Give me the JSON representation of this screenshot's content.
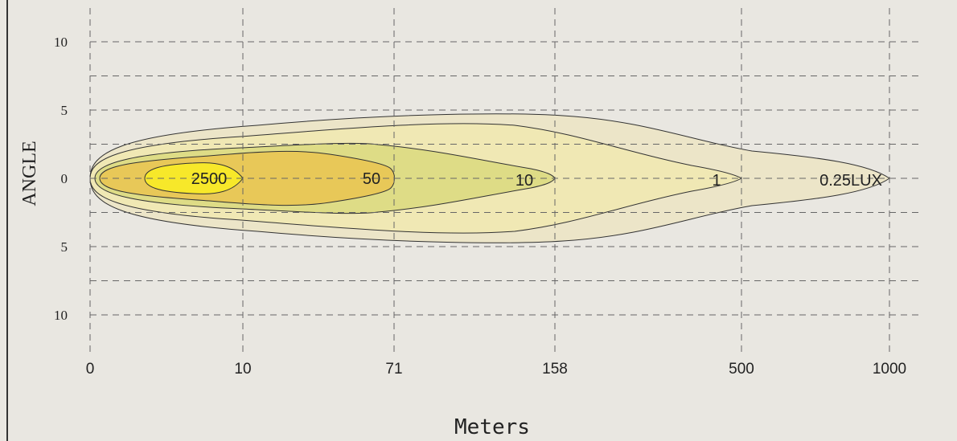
{
  "chart_data": {
    "type": "contour",
    "xlabel": "Meters",
    "ylabel": "ANGLE",
    "x_ticks": [
      "0",
      "10",
      "71",
      "158",
      "500",
      "1000"
    ],
    "y_ticks": [
      {
        "label": "10",
        "value": 10
      },
      {
        "label": "5",
        "value": 5
      },
      {
        "label": "0",
        "value": 0
      },
      {
        "label": "5",
        "value": -5
      },
      {
        "label": "10",
        "value": -10
      }
    ],
    "y_minor_gridlines": [
      7.5,
      2.5,
      -2.5,
      -7.5
    ],
    "grid": true,
    "isolux_zones": [
      {
        "label": "0.25LUX",
        "reach_index": 5,
        "half_angle_deg": 4.7,
        "color": "#ece5c8"
      },
      {
        "label": "1",
        "reach_index": 4,
        "half_angle_deg": 4.7,
        "color": "#f0e8b4"
      },
      {
        "label": "10",
        "reach_index": 3,
        "half_angle_deg": 2.6,
        "color": "#dedc86"
      },
      {
        "label": "50",
        "reach_index": 2,
        "half_angle_deg": 1.8,
        "color": "#e8c858"
      },
      {
        "label": "2500",
        "reach_index": 0.95,
        "half_angle_deg": 0.8,
        "color": "#f7e82a"
      }
    ]
  }
}
